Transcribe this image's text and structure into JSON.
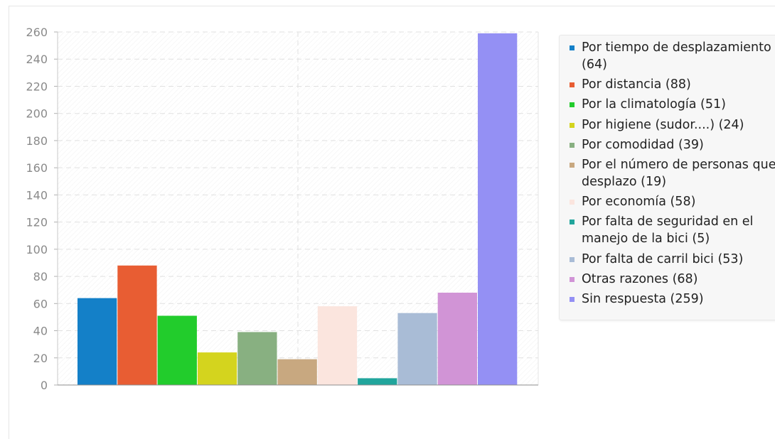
{
  "chart_data": {
    "type": "bar",
    "categories": [
      "Por tiempo de desplazamiento (64)",
      "Por distancia (88)",
      "Por la climatología (51)",
      "Por higiene (sudor....) (24)",
      "Por comodidad (39)",
      "Por el número de personas que desplazo (19)",
      "Por economía (58)",
      "Por falta de seguridad en el manejo de la bici (5)",
      "Por falta de carril bici (53)",
      "Otras razones (68)",
      "Sin respuesta (259)"
    ],
    "values": [
      64,
      88,
      51,
      24,
      39,
      19,
      58,
      5,
      53,
      68,
      259
    ],
    "colors": [
      "#1480c8",
      "#e85d33",
      "#22cc2c",
      "#d4d41e",
      "#88b081",
      "#c8a880",
      "#fbe5de",
      "#21a59c",
      "#a9bcd6",
      "#d194d6",
      "#9490f4"
    ],
    "yticks": [
      "0",
      "20",
      "40",
      "60",
      "80",
      "100",
      "120",
      "140",
      "160",
      "180",
      "200",
      "220",
      "240",
      "260"
    ],
    "ylim": [
      0,
      260
    ],
    "grid": true,
    "title": "",
    "xlabel": "",
    "ylabel": "",
    "legend_position": "right"
  }
}
